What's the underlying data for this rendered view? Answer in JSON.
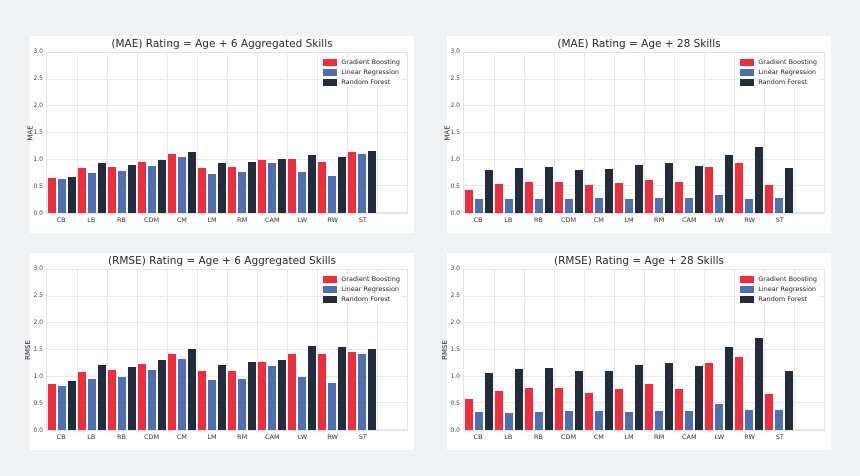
{
  "page": {
    "background": "#f1f2f4",
    "panel_background": "#ffffff"
  },
  "palette": {
    "gradient_boosting": "#ee2d3d",
    "linear_regression": "#4f6fae",
    "random_forest": "#222c3c",
    "grid": "#e6e8ea",
    "title_text": "#2b2b2b",
    "tick_text": "#444444"
  },
  "legend": {
    "labels": [
      "Gradient Boosting",
      "Linear Regression",
      "Random Forest"
    ]
  },
  "chart_data": [
    {
      "type": "bar",
      "title": "(MAE) Rating = Age + 6 Aggregated Skills",
      "ylabel": "MAE",
      "xlabel": "",
      "ylim": [
        0.0,
        3.0
      ],
      "yticks": [
        0.0,
        0.5,
        1.0,
        1.5,
        2.0,
        2.5,
        3.0
      ],
      "grid": true,
      "legend_position": "upper right",
      "categories": [
        "CB",
        "LB",
        "RB",
        "CDM",
        "CM",
        "LM",
        "RM",
        "CAM",
        "LW",
        "RW",
        "ST"
      ],
      "series": [
        {
          "name": "Gradient Boosting",
          "color": "#ee2d3d",
          "values": [
            0.66,
            0.85,
            0.87,
            0.96,
            1.1,
            0.85,
            0.87,
            0.99,
            1.02,
            0.96,
            1.15
          ]
        },
        {
          "name": "Linear Regression",
          "color": "#4f6fae",
          "values": [
            0.63,
            0.75,
            0.79,
            0.88,
            1.05,
            0.74,
            0.76,
            0.93,
            0.76,
            0.69,
            1.1
          ]
        },
        {
          "name": "Random Forest",
          "color": "#222c3c",
          "values": [
            0.68,
            0.93,
            0.9,
            1.0,
            1.15,
            0.93,
            0.95,
            1.01,
            1.09,
            1.05,
            1.17
          ]
        }
      ]
    },
    {
      "type": "bar",
      "title": "(MAE) Rating = Age + 28 Skills",
      "ylabel": "MAE",
      "xlabel": "",
      "ylim": [
        0.0,
        3.0
      ],
      "yticks": [
        0.0,
        0.5,
        1.0,
        1.5,
        2.0,
        2.5,
        3.0
      ],
      "grid": true,
      "legend_position": "upper right",
      "categories": [
        "CB",
        "LB",
        "RB",
        "CDM",
        "CM",
        "LM",
        "RM",
        "CAM",
        "LW",
        "RW",
        "ST"
      ],
      "series": [
        {
          "name": "Gradient Boosting",
          "color": "#ee2d3d",
          "values": [
            0.44,
            0.55,
            0.59,
            0.59,
            0.53,
            0.57,
            0.62,
            0.58,
            0.86,
            0.93,
            0.52
          ]
        },
        {
          "name": "Linear Regression",
          "color": "#4f6fae",
          "values": [
            0.27,
            0.27,
            0.27,
            0.27,
            0.28,
            0.27,
            0.28,
            0.29,
            0.33,
            0.27,
            0.29
          ]
        },
        {
          "name": "Random Forest",
          "color": "#222c3c",
          "values": [
            0.8,
            0.85,
            0.86,
            0.81,
            0.82,
            0.9,
            0.93,
            0.89,
            1.08,
            1.23,
            0.84
          ]
        }
      ]
    },
    {
      "type": "bar",
      "title": "(RMSE) Rating = Age + 6 Aggregated Skills",
      "ylabel": "RMSE",
      "xlabel": "",
      "ylim": [
        0.0,
        3.0
      ],
      "yticks": [
        0.0,
        0.5,
        1.0,
        1.5,
        2.0,
        2.5,
        3.0
      ],
      "grid": true,
      "legend_position": "upper right",
      "categories": [
        "CB",
        "LB",
        "RB",
        "CDM",
        "CM",
        "LM",
        "RM",
        "CAM",
        "LW",
        "RW",
        "ST"
      ],
      "series": [
        {
          "name": "Gradient Boosting",
          "color": "#ee2d3d",
          "values": [
            0.86,
            1.08,
            1.12,
            1.23,
            1.42,
            1.11,
            1.1,
            1.28,
            1.43,
            1.43,
            1.47
          ]
        },
        {
          "name": "Linear Regression",
          "color": "#4f6fae",
          "values": [
            0.83,
            0.95,
            1.0,
            1.12,
            1.34,
            0.93,
            0.95,
            1.2,
            1.0,
            0.89,
            1.42
          ]
        },
        {
          "name": "Random Forest",
          "color": "#222c3c",
          "values": [
            0.91,
            1.21,
            1.19,
            1.31,
            1.51,
            1.22,
            1.27,
            1.32,
            1.58,
            1.55,
            1.51
          ]
        }
      ]
    },
    {
      "type": "bar",
      "title": "(RMSE) Rating = Age + 28 Skills",
      "ylabel": "RMSE",
      "xlabel": "",
      "ylim": [
        0.0,
        3.0
      ],
      "yticks": [
        0.0,
        0.5,
        1.0,
        1.5,
        2.0,
        2.5,
        3.0
      ],
      "grid": true,
      "legend_position": "upper right",
      "categories": [
        "CB",
        "LB",
        "RB",
        "CDM",
        "CM",
        "LM",
        "RM",
        "CAM",
        "LW",
        "RW",
        "ST"
      ],
      "series": [
        {
          "name": "Gradient Boosting",
          "color": "#ee2d3d",
          "values": [
            0.58,
            0.73,
            0.79,
            0.78,
            0.7,
            0.76,
            0.86,
            0.76,
            1.25,
            1.37,
            0.67
          ]
        },
        {
          "name": "Linear Regression",
          "color": "#4f6fae",
          "values": [
            0.34,
            0.32,
            0.33,
            0.35,
            0.36,
            0.34,
            0.35,
            0.36,
            0.48,
            0.37,
            0.37
          ]
        },
        {
          "name": "Random Forest",
          "color": "#222c3c",
          "values": [
            1.06,
            1.15,
            1.17,
            1.1,
            1.1,
            1.22,
            1.26,
            1.2,
            1.56,
            1.73,
            1.11
          ]
        }
      ]
    }
  ]
}
